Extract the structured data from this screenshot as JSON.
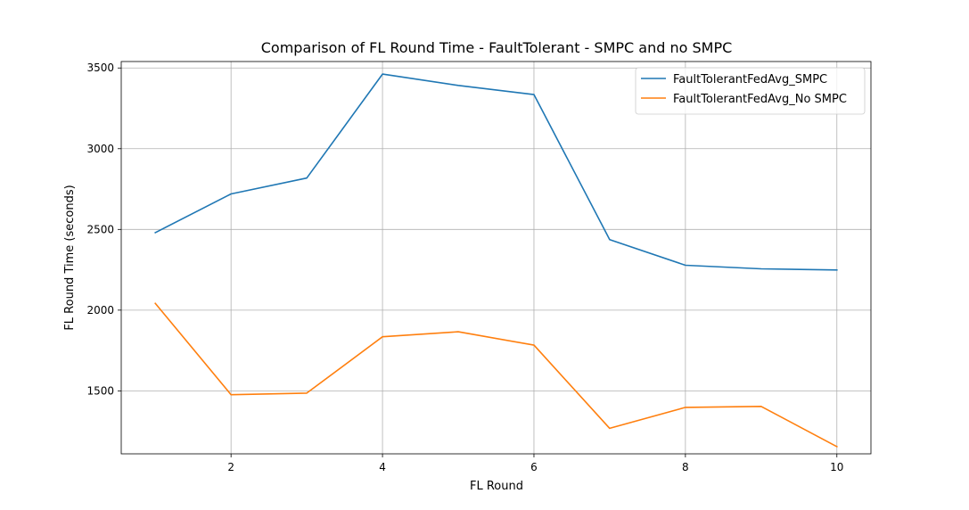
{
  "chart_data": {
    "type": "line",
    "title": "Comparison of FL Round Time - FaultTolerant - SMPC and no SMPC",
    "xlabel": "FL Round",
    "ylabel": "FL Round Time (seconds)",
    "xlim": [
      0.55,
      10.45
    ],
    "ylim": [
      1110,
      3540
    ],
    "xticks": [
      2,
      4,
      6,
      8,
      10
    ],
    "yticks": [
      1500,
      2000,
      2500,
      3000,
      3500
    ],
    "grid": true,
    "legend_position": "top-right",
    "x": [
      1,
      2,
      3,
      4,
      5,
      6,
      7,
      8,
      9,
      10
    ],
    "series": [
      {
        "name": "FaultTolerantFedAvg_SMPC",
        "color": "#1f77b4",
        "values": [
          2480,
          2720,
          2818,
          3462,
          3392,
          3335,
          2437,
          2278,
          2256,
          2249
        ]
      },
      {
        "name": "FaultTolerantFedAvg_No SMPC",
        "color": "#ff7f0e",
        "values": [
          2042,
          1476,
          1486,
          1835,
          1866,
          1783,
          1268,
          1398,
          1404,
          1155
        ]
      }
    ]
  }
}
